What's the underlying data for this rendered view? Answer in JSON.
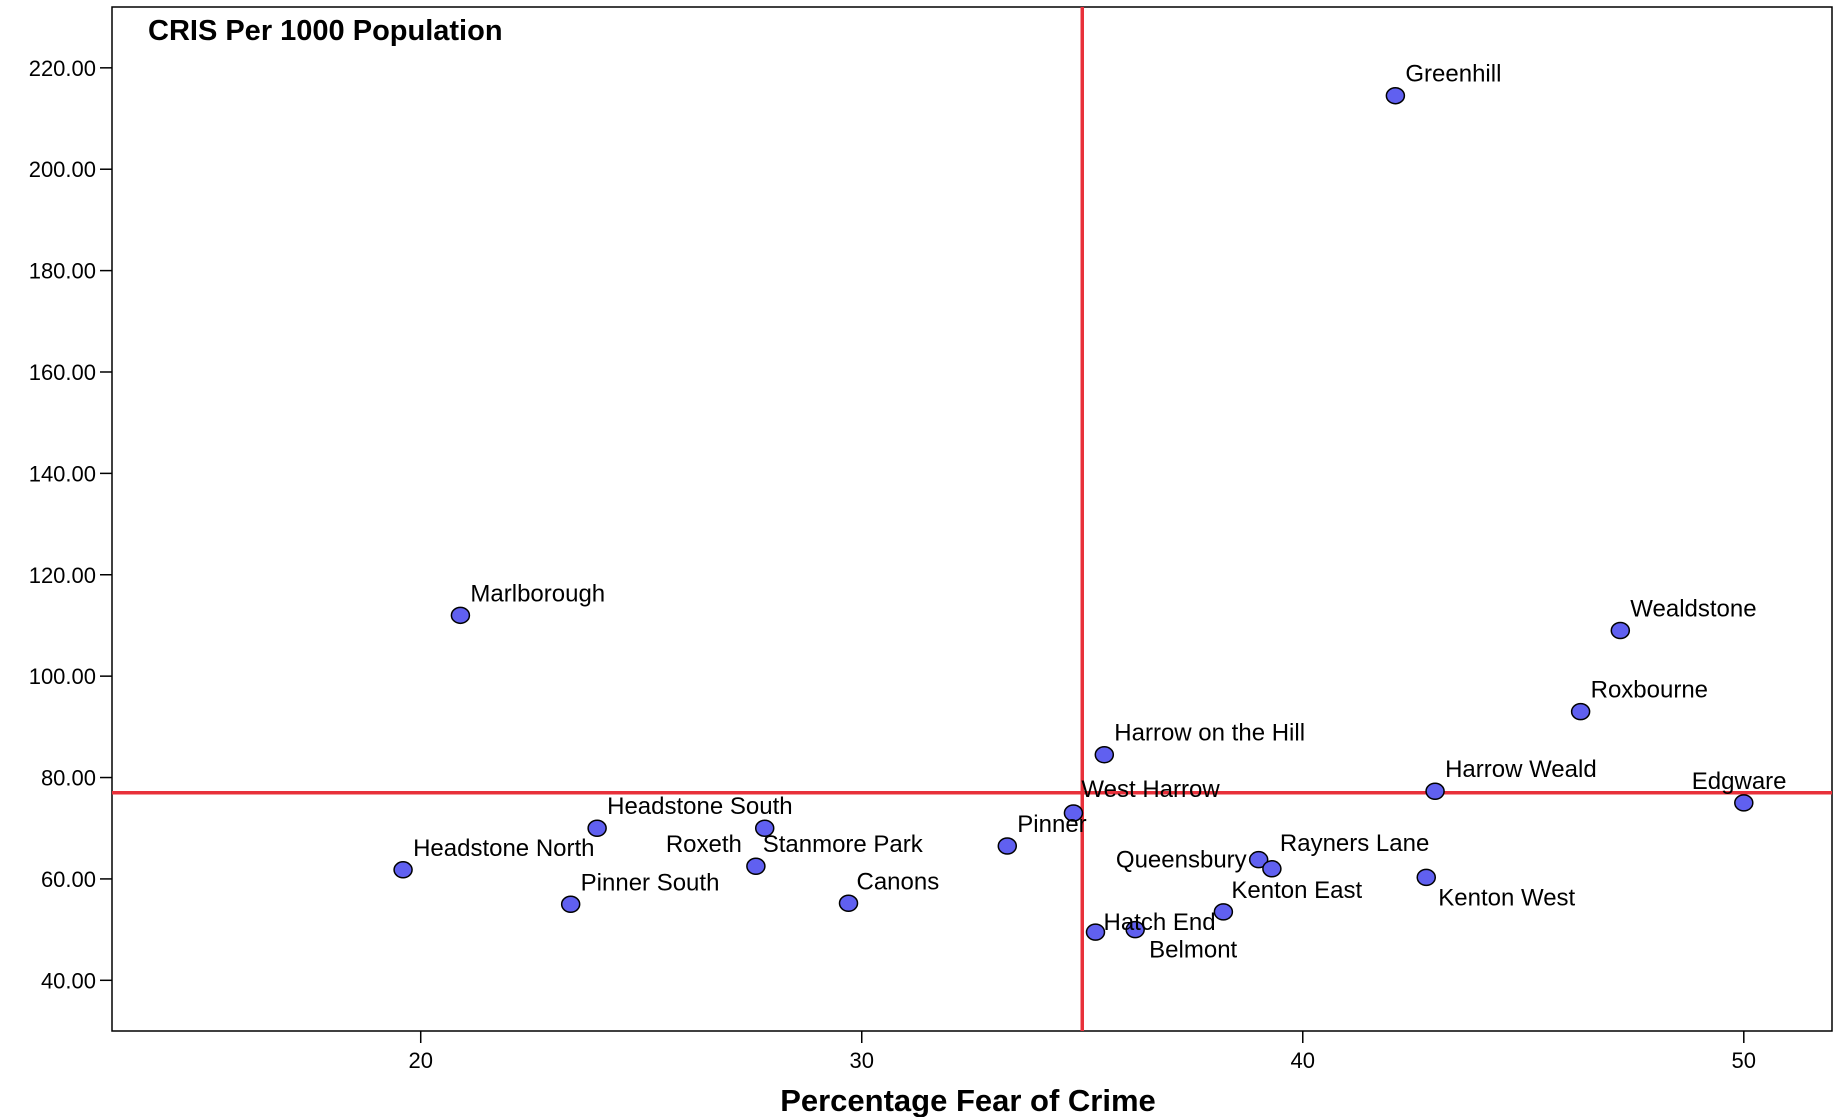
{
  "chart_data": {
    "type": "scatter",
    "title": "CRIS Per 1000 Population",
    "xlabel": "Percentage Fear of Crime",
    "ylabel": "",
    "xlim": [
      13,
      52
    ],
    "ylim": [
      30,
      232
    ],
    "x_ticks": [
      20,
      30,
      40,
      50
    ],
    "x_tick_labels": [
      "20",
      "30",
      "40",
      "50"
    ],
    "y_ticks": [
      40,
      60,
      80,
      100,
      120,
      140,
      160,
      180,
      200,
      220
    ],
    "y_tick_labels": [
      "40.00",
      "60.00",
      "80.00",
      "100.00",
      "120.00",
      "140.00",
      "160.00",
      "180.00",
      "200.00",
      "220.00"
    ],
    "reference_lines": {
      "x": 35,
      "y": 77
    },
    "grid": false,
    "colors": {
      "point_fill": "#6060f0",
      "point_stroke": "#000000",
      "reference": "#e8303a"
    },
    "points": [
      {
        "label": "Greenhill",
        "x": 42.1,
        "y": 214.5
      },
      {
        "label": "Marlborough",
        "x": 20.9,
        "y": 112
      },
      {
        "label": "Wealdstone",
        "x": 47.2,
        "y": 109
      },
      {
        "label": "Roxbourne",
        "x": 46.3,
        "y": 93
      },
      {
        "label": "Harrow on the Hill",
        "x": 35.5,
        "y": 84.5
      },
      {
        "label": "Harrow Weald",
        "x": 43.0,
        "y": 77.3
      },
      {
        "label": "Edgware",
        "x": 50.0,
        "y": 75
      },
      {
        "label": "West Harrow",
        "x": 34.8,
        "y": 73
      },
      {
        "label": "Headstone South",
        "x": 24.0,
        "y": 70
      },
      {
        "label": "Stanmore Park",
        "x": 27.8,
        "y": 70
      },
      {
        "label": "Pinner",
        "x": 33.3,
        "y": 66.5
      },
      {
        "label": "Queensbury",
        "x": 39.0,
        "y": 63.8
      },
      {
        "label": "Rayners Lane",
        "x": 39.3,
        "y": 62
      },
      {
        "label": "Roxeth",
        "x": 27.6,
        "y": 62.5
      },
      {
        "label": "Headstone North",
        "x": 19.6,
        "y": 61.8
      },
      {
        "label": "Kenton West",
        "x": 42.8,
        "y": 60.3
      },
      {
        "label": "Pinner South",
        "x": 23.4,
        "y": 55
      },
      {
        "label": "Canons",
        "x": 29.7,
        "y": 55.2
      },
      {
        "label": "Kenton East",
        "x": 38.2,
        "y": 53.5
      },
      {
        "label": "Hatch End",
        "x": 35.3,
        "y": 49.5
      },
      {
        "label": "Belmont",
        "x": 36.2,
        "y": 50
      }
    ]
  }
}
